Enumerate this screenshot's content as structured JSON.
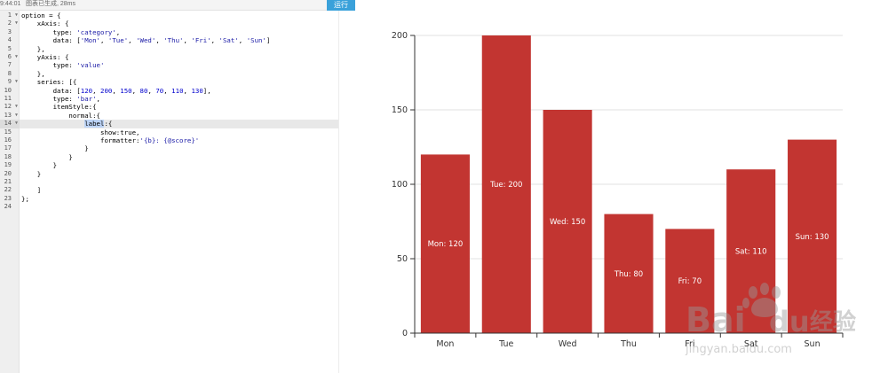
{
  "status": {
    "time": "9:44:01",
    "message": "图表已生成, 28ms",
    "run_label": "运行"
  },
  "editor": {
    "active_line": 14,
    "lines": [
      {
        "n": "1",
        "fold": true,
        "text": "option = {"
      },
      {
        "n": "2",
        "fold": true,
        "text": "    xAxis: {"
      },
      {
        "n": "3",
        "fold": false,
        "text": "        type: 'category',"
      },
      {
        "n": "4",
        "fold": false,
        "text": "        data: ['Mon', 'Tue', 'Wed', 'Thu', 'Fri', 'Sat', 'Sun']"
      },
      {
        "n": "5",
        "fold": false,
        "text": "    },"
      },
      {
        "n": "6",
        "fold": true,
        "text": "    yAxis: {"
      },
      {
        "n": "7",
        "fold": false,
        "text": "        type: 'value'"
      },
      {
        "n": "8",
        "fold": false,
        "text": "    },"
      },
      {
        "n": "9",
        "fold": true,
        "text": "    series: [{"
      },
      {
        "n": "10",
        "fold": false,
        "text": "        data: [120, 200, 150, 80, 70, 110, 130],"
      },
      {
        "n": "11",
        "fold": false,
        "text": "        type: 'bar',"
      },
      {
        "n": "12",
        "fold": true,
        "text": "        itemStyle:{"
      },
      {
        "n": "13",
        "fold": true,
        "text": "            normal:{"
      },
      {
        "n": "14",
        "fold": true,
        "text": "                label:{"
      },
      {
        "n": "15",
        "fold": false,
        "text": "                    show:true,"
      },
      {
        "n": "16",
        "fold": false,
        "text": "                    formatter:'{b}: {@score}'"
      },
      {
        "n": "17",
        "fold": false,
        "text": "                }"
      },
      {
        "n": "18",
        "fold": false,
        "text": "            }"
      },
      {
        "n": "19",
        "fold": false,
        "text": "        }"
      },
      {
        "n": "20",
        "fold": false,
        "text": "    }"
      },
      {
        "n": "21",
        "fold": false,
        "text": ""
      },
      {
        "n": "22",
        "fold": false,
        "text": "    ]"
      },
      {
        "n": "23",
        "fold": false,
        "text": "};"
      },
      {
        "n": "24",
        "fold": false,
        "text": ""
      }
    ]
  },
  "chart_data": {
    "type": "bar",
    "categories": [
      "Mon",
      "Tue",
      "Wed",
      "Thu",
      "Fri",
      "Sat",
      "Sun"
    ],
    "values": [
      120,
      200,
      150,
      80,
      70,
      110,
      130
    ],
    "bar_labels": [
      "Mon: 120",
      "Tue: 200",
      "Wed: 150",
      "Thu: 80",
      "Fri: 70",
      "Sat: 110",
      "Sun: 130"
    ],
    "y_ticks": [
      0,
      50,
      100,
      150,
      200
    ],
    "ylim": [
      0,
      200
    ],
    "grid": true,
    "bar_color": "#c23531"
  },
  "watermark": {
    "brand": "Baidu经验",
    "url": "jingyan.baidu.com"
  }
}
